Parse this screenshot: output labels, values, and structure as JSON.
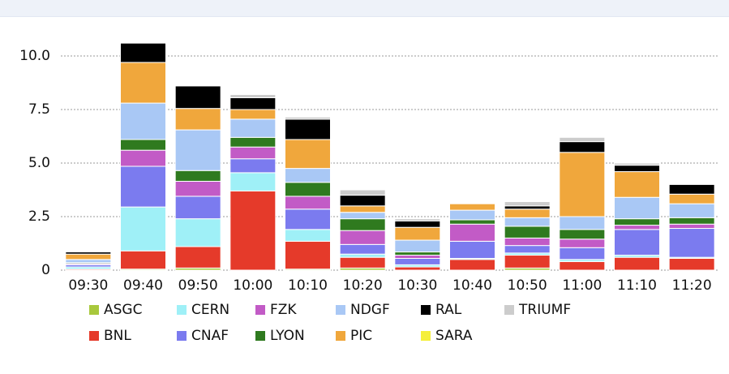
{
  "chart_data": {
    "type": "stacked-bar",
    "categories": [
      "09:30",
      "09:40",
      "09:50",
      "10:00",
      "10:10",
      "10:20",
      "10:30",
      "10:40",
      "10:50",
      "11:00",
      "11:10",
      "11:20"
    ],
    "series": [
      {
        "name": "ASGC",
        "color": "#a8c83c",
        "values": [
          0,
          0.05,
          0.1,
          0,
          0.05,
          0.1,
          0,
          0,
          0.1,
          0,
          0,
          0
        ]
      },
      {
        "name": "BNL",
        "color": "#e53a2a",
        "values": [
          0.05,
          0.85,
          1.0,
          3.7,
          1.3,
          0.5,
          0.15,
          0.5,
          0.6,
          0.4,
          0.6,
          0.55
        ]
      },
      {
        "name": "CERN",
        "color": "#9ff0f7",
        "values": [
          0.1,
          2.05,
          1.3,
          0.85,
          0.55,
          0.15,
          0.1,
          0.05,
          0.1,
          0.1,
          0.1,
          0.05
        ]
      },
      {
        "name": "CNAF",
        "color": "#7b7bef",
        "values": [
          0.1,
          1.9,
          1.05,
          0.65,
          0.95,
          0.45,
          0.3,
          0.8,
          0.35,
          0.55,
          1.2,
          1.35
        ]
      },
      {
        "name": "FZK",
        "color": "#c25bc6",
        "values": [
          0.05,
          0.75,
          0.7,
          0.55,
          0.6,
          0.65,
          0.15,
          0.8,
          0.35,
          0.4,
          0.2,
          0.2
        ]
      },
      {
        "name": "LYON",
        "color": "#2f7a1f",
        "values": [
          0.05,
          0.5,
          0.5,
          0.45,
          0.65,
          0.55,
          0.15,
          0.2,
          0.55,
          0.45,
          0.3,
          0.3
        ]
      },
      {
        "name": "NDGF",
        "color": "#a9c8f5",
        "values": [
          0.15,
          1.7,
          1.9,
          0.85,
          0.65,
          0.3,
          0.55,
          0.45,
          0.4,
          0.6,
          1.0,
          0.65
        ]
      },
      {
        "name": "PIC",
        "color": "#f0a73c",
        "values": [
          0.25,
          1.9,
          1.0,
          0.45,
          1.35,
          0.3,
          0.6,
          0.3,
          0.4,
          3.0,
          1.2,
          0.45
        ]
      },
      {
        "name": "RAL",
        "color": "#000000",
        "values": [
          0.1,
          0.9,
          1.05,
          0.55,
          0.95,
          0.5,
          0.3,
          0,
          0.15,
          0.5,
          0.3,
          0.45
        ]
      },
      {
        "name": "SARA",
        "color": "#f5ef3a",
        "values": [
          0,
          0,
          0,
          0,
          0,
          0,
          0,
          0,
          0,
          0,
          0,
          0
        ]
      },
      {
        "name": "TRIUMF",
        "color": "#cccccc",
        "values": [
          0,
          0,
          0,
          0.15,
          0.1,
          0.25,
          0.1,
          0,
          0.2,
          0.2,
          0.1,
          0
        ]
      }
    ],
    "ylim": [
      0,
      11
    ],
    "yticks": [
      0,
      2.5,
      {
        "value": 5,
        "label": "5.0"
      },
      7.5,
      {
        "value": 10,
        "label": "10.0"
      }
    ],
    "grid": true
  }
}
